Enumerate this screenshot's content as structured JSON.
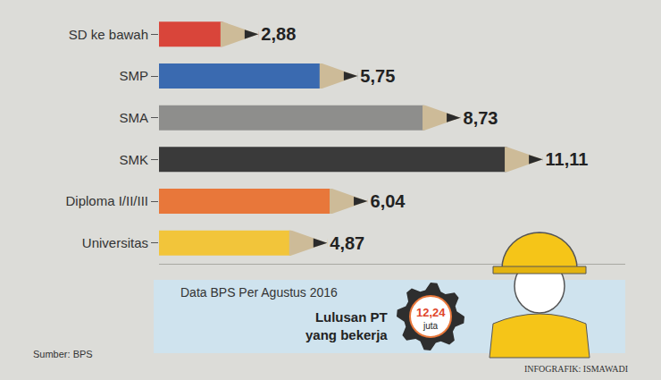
{
  "chart_data": {
    "type": "bar",
    "orientation": "horizontal",
    "categories": [
      "SD ke bawah",
      "SMP",
      "SMA",
      "SMK",
      "Diploma I/II/III",
      "Universitas"
    ],
    "values": [
      2.88,
      5.75,
      8.73,
      11.11,
      6.04,
      4.87
    ],
    "value_labels": [
      "2,88",
      "5,75",
      "8,73",
      "11,11",
      "6,04",
      "4,87"
    ],
    "colors": [
      "#d9453a",
      "#3a6ab0",
      "#8e8e8c",
      "#3a3a3a",
      "#e8773a",
      "#f2c53a"
    ],
    "xlim": [
      0,
      13.5
    ],
    "tick_labels": "y",
    "grid": false,
    "data_labels": true,
    "annotations": {
      "note": "Data BPS Per Agustus 2016",
      "callout_title": "Lulusan PT yang bekerja",
      "callout_value": "12,24",
      "callout_unit": "juta",
      "source": "Sumber: BPS",
      "credit": "INFOGRAFIK: ISMAWADI"
    }
  }
}
